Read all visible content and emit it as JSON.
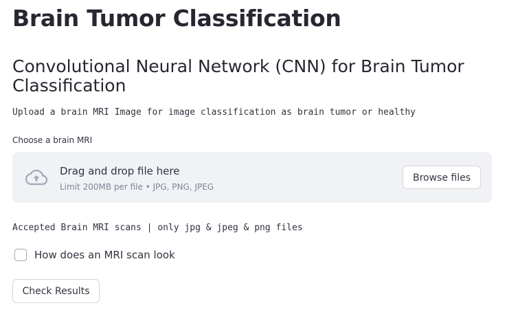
{
  "page": {
    "title": "Brain Tumor Classification",
    "subheader": "Convolutional Neural Network (CNN) for Brain Tumor Classification",
    "intro_text": "Upload a brain MRI Image for image classification as brain tumor or healthy"
  },
  "uploader": {
    "label": "Choose a brain MRI",
    "drop_title": "Drag and drop file here",
    "limit_text": "Limit 200MB per file • JPG, PNG, JPEG",
    "browse_label": "Browse files",
    "icon": "cloud-upload-icon"
  },
  "accepted_text": "Accepted Brain MRI scans | only jpg & jpeg & png files",
  "checkbox": {
    "label": "How does an MRI scan look",
    "checked": false
  },
  "actions": {
    "check_results_label": "Check Results"
  },
  "colors": {
    "text": "#31333f",
    "dropzone_bg": "#f0f2f6",
    "muted": "#808495",
    "border": "#d6d6d9"
  }
}
